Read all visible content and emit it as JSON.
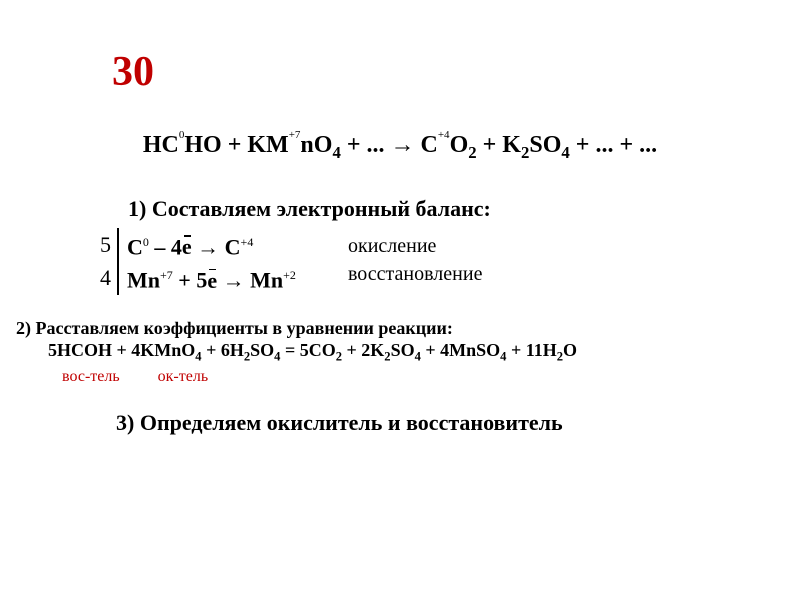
{
  "colors": {
    "accent_red": "#c00000",
    "text": "#000000",
    "background": "#ffffff"
  },
  "title": "30",
  "main_equation": {
    "ox_c": "0",
    "ox_mn": "+7",
    "ox_c2": "+4",
    "r1": "HCHO + KMnO",
    "sub4": "4",
    "plus_dots_arrow": " + ... → CO",
    "sub2": "2",
    "plus_k2so4": " + K",
    "sub2b": "2",
    "so": "SO",
    "sub4b": "4",
    "tail": " + ... + ..."
  },
  "step1_label": "1) Составляем электронный баланс:",
  "balance": {
    "coef_top": "5",
    "coef_bot": "4",
    "half1_a": "C",
    "half1_sup0": "0",
    "half1_mid": " – 4",
    "half1_e": "e",
    "half1_arrow": " → C",
    "half1_sup4": "+4",
    "half2_a": "Mn",
    "half2_sup7": "+7",
    "half2_mid": " + 5",
    "half2_e": "e",
    "half2_arrow": " → Mn",
    "half2_sup2": "+2",
    "label_oxid": "окисление",
    "label_red": "восстановление"
  },
  "step2_label": "2)  Расставляем коэффициенты в уравнении реакции:",
  "full_eq": {
    "a": "5HCOH + 4KMnO",
    "s4": "4",
    "b": " + 6H",
    "s2": "2",
    "c": "SO",
    "s4b": "4",
    "d": " = 5CO",
    "s2b": "2",
    "e": " + 2K",
    "s2c": "2",
    "f": "SO",
    "s4c": "4",
    "g": " + 4MnSO",
    "s4d": "4",
    "h": " + 11H",
    "s2d": "2",
    "i": "O"
  },
  "roles": {
    "vos": "вос-тель",
    "ok": "ок-тель"
  },
  "step3_label": "3) Определяем окислитель и восстановитель"
}
